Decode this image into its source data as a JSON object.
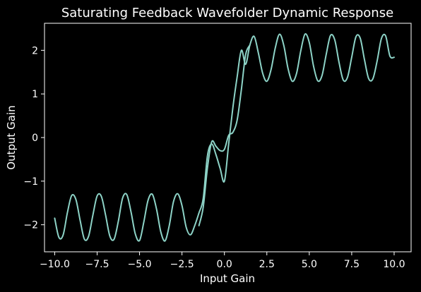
{
  "chart_data": {
    "type": "line",
    "title": "Saturating Feedback Wavefolder Dynamic Response",
    "xlabel": "Input Gain",
    "ylabel": "Output Gain",
    "xlim": [
      -10.6,
      11.0
    ],
    "ylim": [
      -2.62,
      2.62
    ],
    "x_ticks": [
      -10.0,
      -7.5,
      -5.0,
      -2.5,
      0.0,
      2.5,
      5.0,
      7.5,
      10.0
    ],
    "x_tick_labels": [
      "−10.0",
      "−7.5",
      "−5.0",
      "−2.5",
      "0.0",
      "2.5",
      "5.0",
      "7.5",
      "10.0"
    ],
    "y_ticks": [
      -2,
      -1,
      0,
      1,
      2
    ],
    "y_tick_labels": [
      "−2",
      "−1",
      "0",
      "1",
      "2"
    ],
    "grid": false,
    "legend": false,
    "line_color": "#8dd3c7",
    "series": [
      {
        "x": [
          -10.0,
          -9.75,
          -9.5,
          -9.25,
          -9.0,
          -8.75,
          -8.5,
          -8.25,
          -8.0,
          -7.75,
          -7.5,
          -7.25,
          -7.0,
          -6.75,
          -6.5,
          -6.25,
          -6.0,
          -5.75,
          -5.5,
          -5.25,
          -5.0,
          -4.75,
          -4.5,
          -4.25,
          -4.0,
          -3.75,
          -3.5,
          -3.25,
          -3.0,
          -2.75,
          -2.5,
          -2.25,
          -2.0,
          -1.75,
          -1.5,
          -1.25,
          -1.0,
          -0.75,
          -0.5,
          -0.25,
          0.0,
          0.25,
          0.5,
          0.75,
          1.0,
          1.25,
          1.5,
          1.75,
          2.0,
          2.25,
          2.5,
          2.75,
          3.0,
          3.25,
          3.5,
          3.75,
          4.0,
          4.25,
          4.5,
          4.75,
          5.0,
          5.25,
          5.5,
          5.75,
          6.0,
          6.25,
          6.5,
          6.75,
          7.0,
          7.25,
          7.5,
          7.75,
          8.0,
          8.25,
          8.5,
          8.75,
          9.0,
          9.25,
          9.5,
          9.75,
          10.0
        ],
        "y": [
          -1.85,
          -2.29,
          -2.23,
          -1.72,
          -1.33,
          -1.42,
          -1.9,
          -2.33,
          -2.26,
          -1.78,
          -1.34,
          -1.35,
          -1.78,
          -2.26,
          -2.33,
          -1.92,
          -1.39,
          -1.31,
          -1.71,
          -2.21,
          -2.36,
          -1.94,
          -1.44,
          -1.3,
          -1.64,
          -2.16,
          -2.37,
          -2.02,
          -1.47,
          -1.29,
          -1.56,
          -2.06,
          -2.23,
          -2.02,
          -1.73,
          -1.4,
          -0.42,
          -0.15,
          -0.39,
          -0.71,
          -1.0,
          -0.15,
          0.69,
          1.39,
          2.0,
          1.68,
          2.12,
          2.32,
          1.94,
          1.48,
          1.29,
          1.56,
          2.06,
          2.37,
          2.11,
          1.58,
          1.29,
          1.47,
          1.99,
          2.37,
          2.18,
          1.64,
          1.3,
          1.42,
          1.91,
          2.34,
          2.24,
          1.73,
          1.32,
          1.38,
          1.84,
          2.31,
          2.28,
          1.79,
          1.35,
          1.35,
          1.76,
          2.27,
          2.33,
          1.87,
          1.84
        ]
      },
      {
        "x": [
          -1.5,
          -1.25,
          -1.0,
          -0.75,
          -0.5,
          -0.25,
          0.0,
          0.25,
          0.5,
          0.75,
          1.0,
          1.25,
          1.5
        ],
        "y": [
          -2.02,
          -1.6,
          -0.7,
          -0.1,
          -0.2,
          -0.3,
          -0.27,
          0.05,
          0.12,
          0.4,
          1.1,
          1.9,
          2.12
        ]
      }
    ]
  }
}
